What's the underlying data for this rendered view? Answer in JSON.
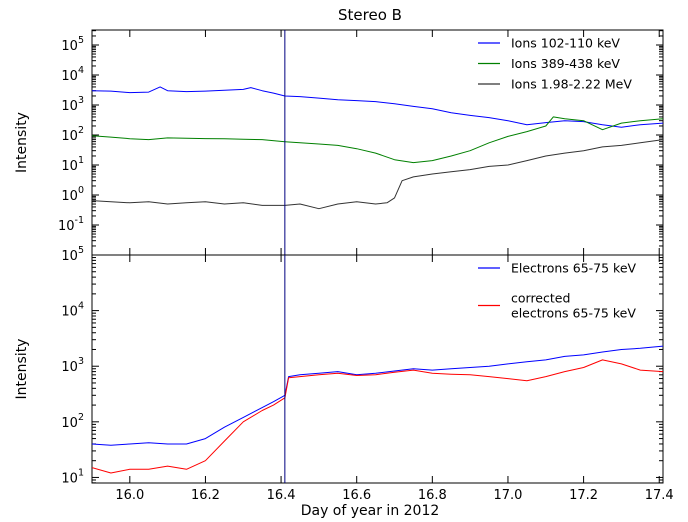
{
  "chart_data": {
    "type": "line",
    "title": "Stereo B",
    "xlabel": "Day of year in 2012",
    "xlim": [
      15.9,
      17.41
    ],
    "xticks": [
      16.0,
      16.2,
      16.4,
      16.6,
      16.8,
      17.0,
      17.2,
      17.4
    ],
    "xtick_labels": [
      "16.0",
      "16.2",
      "16.4",
      "16.6",
      "16.8",
      "17.0",
      "17.2",
      "17.4"
    ],
    "vline_x": 16.41,
    "vline_color": "#000080",
    "grid": false,
    "panels": [
      {
        "ylabel": "Intensity",
        "yscale": "log",
        "ylim_exp": [
          -2,
          5.5
        ],
        "yticks_exp": [
          -1,
          0,
          1,
          2,
          3,
          4,
          5
        ],
        "ytick_labels": [
          {
            "base": "10",
            "exp": "-1"
          },
          {
            "base": "10",
            "exp": "0"
          },
          {
            "base": "10",
            "exp": "1"
          },
          {
            "base": "10",
            "exp": "2"
          },
          {
            "base": "10",
            "exp": "3"
          },
          {
            "base": "10",
            "exp": "4"
          },
          {
            "base": "10",
            "exp": "5"
          }
        ],
        "legend_position": "top-right",
        "series": [
          {
            "name": "Ions 102-110 keV",
            "color": "#0000ff",
            "x": [
              15.9,
              15.95,
              16.0,
              16.05,
              16.08,
              16.1,
              16.15,
              16.2,
              16.25,
              16.3,
              16.32,
              16.35,
              16.38,
              16.41,
              16.45,
              16.5,
              16.55,
              16.6,
              16.65,
              16.7,
              16.75,
              16.8,
              16.85,
              16.9,
              16.95,
              17.0,
              17.05,
              17.1,
              17.15,
              17.2,
              17.25,
              17.3,
              17.35,
              17.41
            ],
            "y": [
              3000,
              2900,
              2600,
              2700,
              4000,
              3000,
              2800,
              2900,
              3100,
              3300,
              3800,
              3000,
              2500,
              2000,
              1900,
              1700,
              1500,
              1400,
              1300,
              1100,
              900,
              750,
              550,
              450,
              380,
              300,
              220,
              260,
              300,
              280,
              220,
              180,
              220,
              250
            ]
          },
          {
            "name": "Ions 389-438 keV",
            "color": "#008000",
            "x": [
              15.9,
              15.95,
              16.0,
              16.05,
              16.1,
              16.15,
              16.2,
              16.25,
              16.3,
              16.35,
              16.41,
              16.45,
              16.5,
              16.55,
              16.6,
              16.65,
              16.7,
              16.75,
              16.8,
              16.85,
              16.9,
              16.95,
              17.0,
              17.05,
              17.1,
              17.12,
              17.15,
              17.2,
              17.25,
              17.3,
              17.35,
              17.41
            ],
            "y": [
              95,
              85,
              75,
              70,
              80,
              78,
              76,
              75,
              72,
              70,
              60,
              55,
              50,
              45,
              35,
              25,
              15,
              12,
              14,
              20,
              30,
              55,
              90,
              130,
              200,
              400,
              350,
              300,
              150,
              250,
              300,
              350
            ]
          },
          {
            "name": "Ions 1.98-2.22 MeV",
            "color": "#333333",
            "x": [
              15.9,
              15.95,
              16.0,
              16.05,
              16.1,
              16.15,
              16.2,
              16.25,
              16.3,
              16.35,
              16.41,
              16.45,
              16.5,
              16.55,
              16.6,
              16.65,
              16.68,
              16.7,
              16.72,
              16.75,
              16.8,
              16.85,
              16.9,
              16.95,
              17.0,
              17.05,
              17.1,
              17.15,
              17.2,
              17.25,
              17.3,
              17.35,
              17.41
            ],
            "y": [
              0.65,
              0.6,
              0.55,
              0.6,
              0.5,
              0.55,
              0.6,
              0.5,
              0.55,
              0.45,
              0.45,
              0.5,
              0.35,
              0.5,
              0.6,
              0.5,
              0.55,
              0.8,
              3.0,
              4.0,
              5.0,
              6.0,
              7.0,
              9.0,
              10.0,
              14.0,
              20.0,
              25.0,
              30.0,
              40.0,
              45.0,
              55.0,
              70.0
            ]
          }
        ]
      },
      {
        "ylabel": "Intensity",
        "yscale": "log",
        "ylim_exp": [
          0.9,
          5.0
        ],
        "yticks_exp": [
          1,
          2,
          3,
          4,
          5
        ],
        "ytick_labels": [
          {
            "base": "10",
            "exp": "1"
          },
          {
            "base": "10",
            "exp": "2"
          },
          {
            "base": "10",
            "exp": "3"
          },
          {
            "base": "10",
            "exp": "4"
          },
          {
            "base": "10",
            "exp": "5"
          }
        ],
        "legend_position": "top-right",
        "series": [
          {
            "name": "Electrons 65-75 keV",
            "color": "#0000ff",
            "x": [
              15.9,
              15.95,
              16.0,
              16.05,
              16.1,
              16.15,
              16.2,
              16.25,
              16.3,
              16.35,
              16.38,
              16.41,
              16.42,
              16.45,
              16.5,
              16.55,
              16.6,
              16.65,
              16.7,
              16.75,
              16.8,
              16.85,
              16.9,
              16.95,
              17.0,
              17.05,
              17.1,
              17.15,
              17.2,
              17.25,
              17.3,
              17.35,
              17.41
            ],
            "y": [
              40,
              38,
              40,
              42,
              40,
              40,
              50,
              80,
              120,
              180,
              230,
              300,
              650,
              700,
              750,
              800,
              700,
              750,
              820,
              900,
              850,
              900,
              950,
              1000,
              1100,
              1200,
              1300,
              1500,
              1600,
              1800,
              2000,
              2100,
              2300
            ]
          },
          {
            "name": "corrected\nelectrons 65-75 keV",
            "color": "#ff0000",
            "x": [
              15.9,
              15.95,
              16.0,
              16.05,
              16.1,
              16.15,
              16.2,
              16.25,
              16.3,
              16.35,
              16.38,
              16.41,
              16.42,
              16.45,
              16.5,
              16.55,
              16.6,
              16.65,
              16.7,
              16.75,
              16.8,
              16.85,
              16.9,
              16.95,
              17.0,
              17.05,
              17.1,
              17.15,
              17.2,
              17.25,
              17.3,
              17.35,
              17.41
            ],
            "y": [
              15,
              12,
              14,
              14,
              16,
              14,
              20,
              45,
              100,
              160,
              200,
              270,
              620,
              650,
              700,
              750,
              680,
              700,
              780,
              850,
              750,
              720,
              700,
              650,
              600,
              550,
              650,
              800,
              950,
              1300,
              1100,
              850,
              800
            ]
          }
        ]
      }
    ]
  }
}
